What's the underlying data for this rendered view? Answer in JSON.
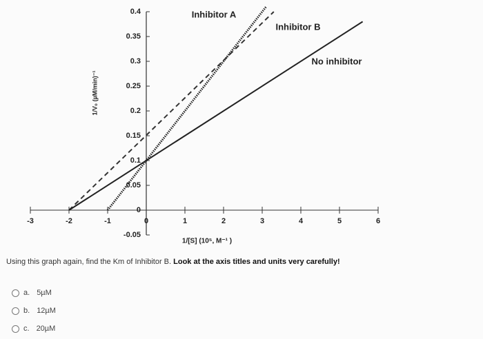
{
  "chart_data": {
    "type": "line",
    "xlabel": "1/[S] (10⁵, M⁻¹ )",
    "ylabel": "1/V₀ (µM/min)⁻¹",
    "xlim": [
      -3,
      6
    ],
    "xticks": [
      -3,
      -2,
      -1,
      0,
      1,
      2,
      3,
      4,
      5,
      6
    ],
    "ylim": [
      -0.05,
      0.4
    ],
    "yticks": [
      -0.05,
      0,
      0.05,
      0.1,
      0.15,
      0.2,
      0.25,
      0.3,
      0.35,
      0.4
    ],
    "series": [
      {
        "name": "Inhibitor A",
        "color": "#222222",
        "dash": "dotted",
        "x": [
          -1,
          3.1
        ],
        "values": [
          0,
          0.41
        ]
      },
      {
        "name": "Inhibitor B",
        "color": "#333333",
        "dash": "dashed",
        "x": [
          -2,
          3.3
        ],
        "values": [
          0,
          0.4
        ]
      },
      {
        "name": "No inhibitor",
        "color": "#222222",
        "dash": "solid",
        "x": [
          -2,
          5.6
        ],
        "values": [
          0,
          0.38
        ]
      }
    ]
  },
  "question": {
    "text": "Using this graph again, find the Km of Inhibitor B.",
    "emphasis": "Look at the axis titles and units very carefully!"
  },
  "options": [
    {
      "letter": "a.",
      "text": "5µM"
    },
    {
      "letter": "b.",
      "text": "12µM"
    },
    {
      "letter": "c.",
      "text": "20µM"
    }
  ]
}
